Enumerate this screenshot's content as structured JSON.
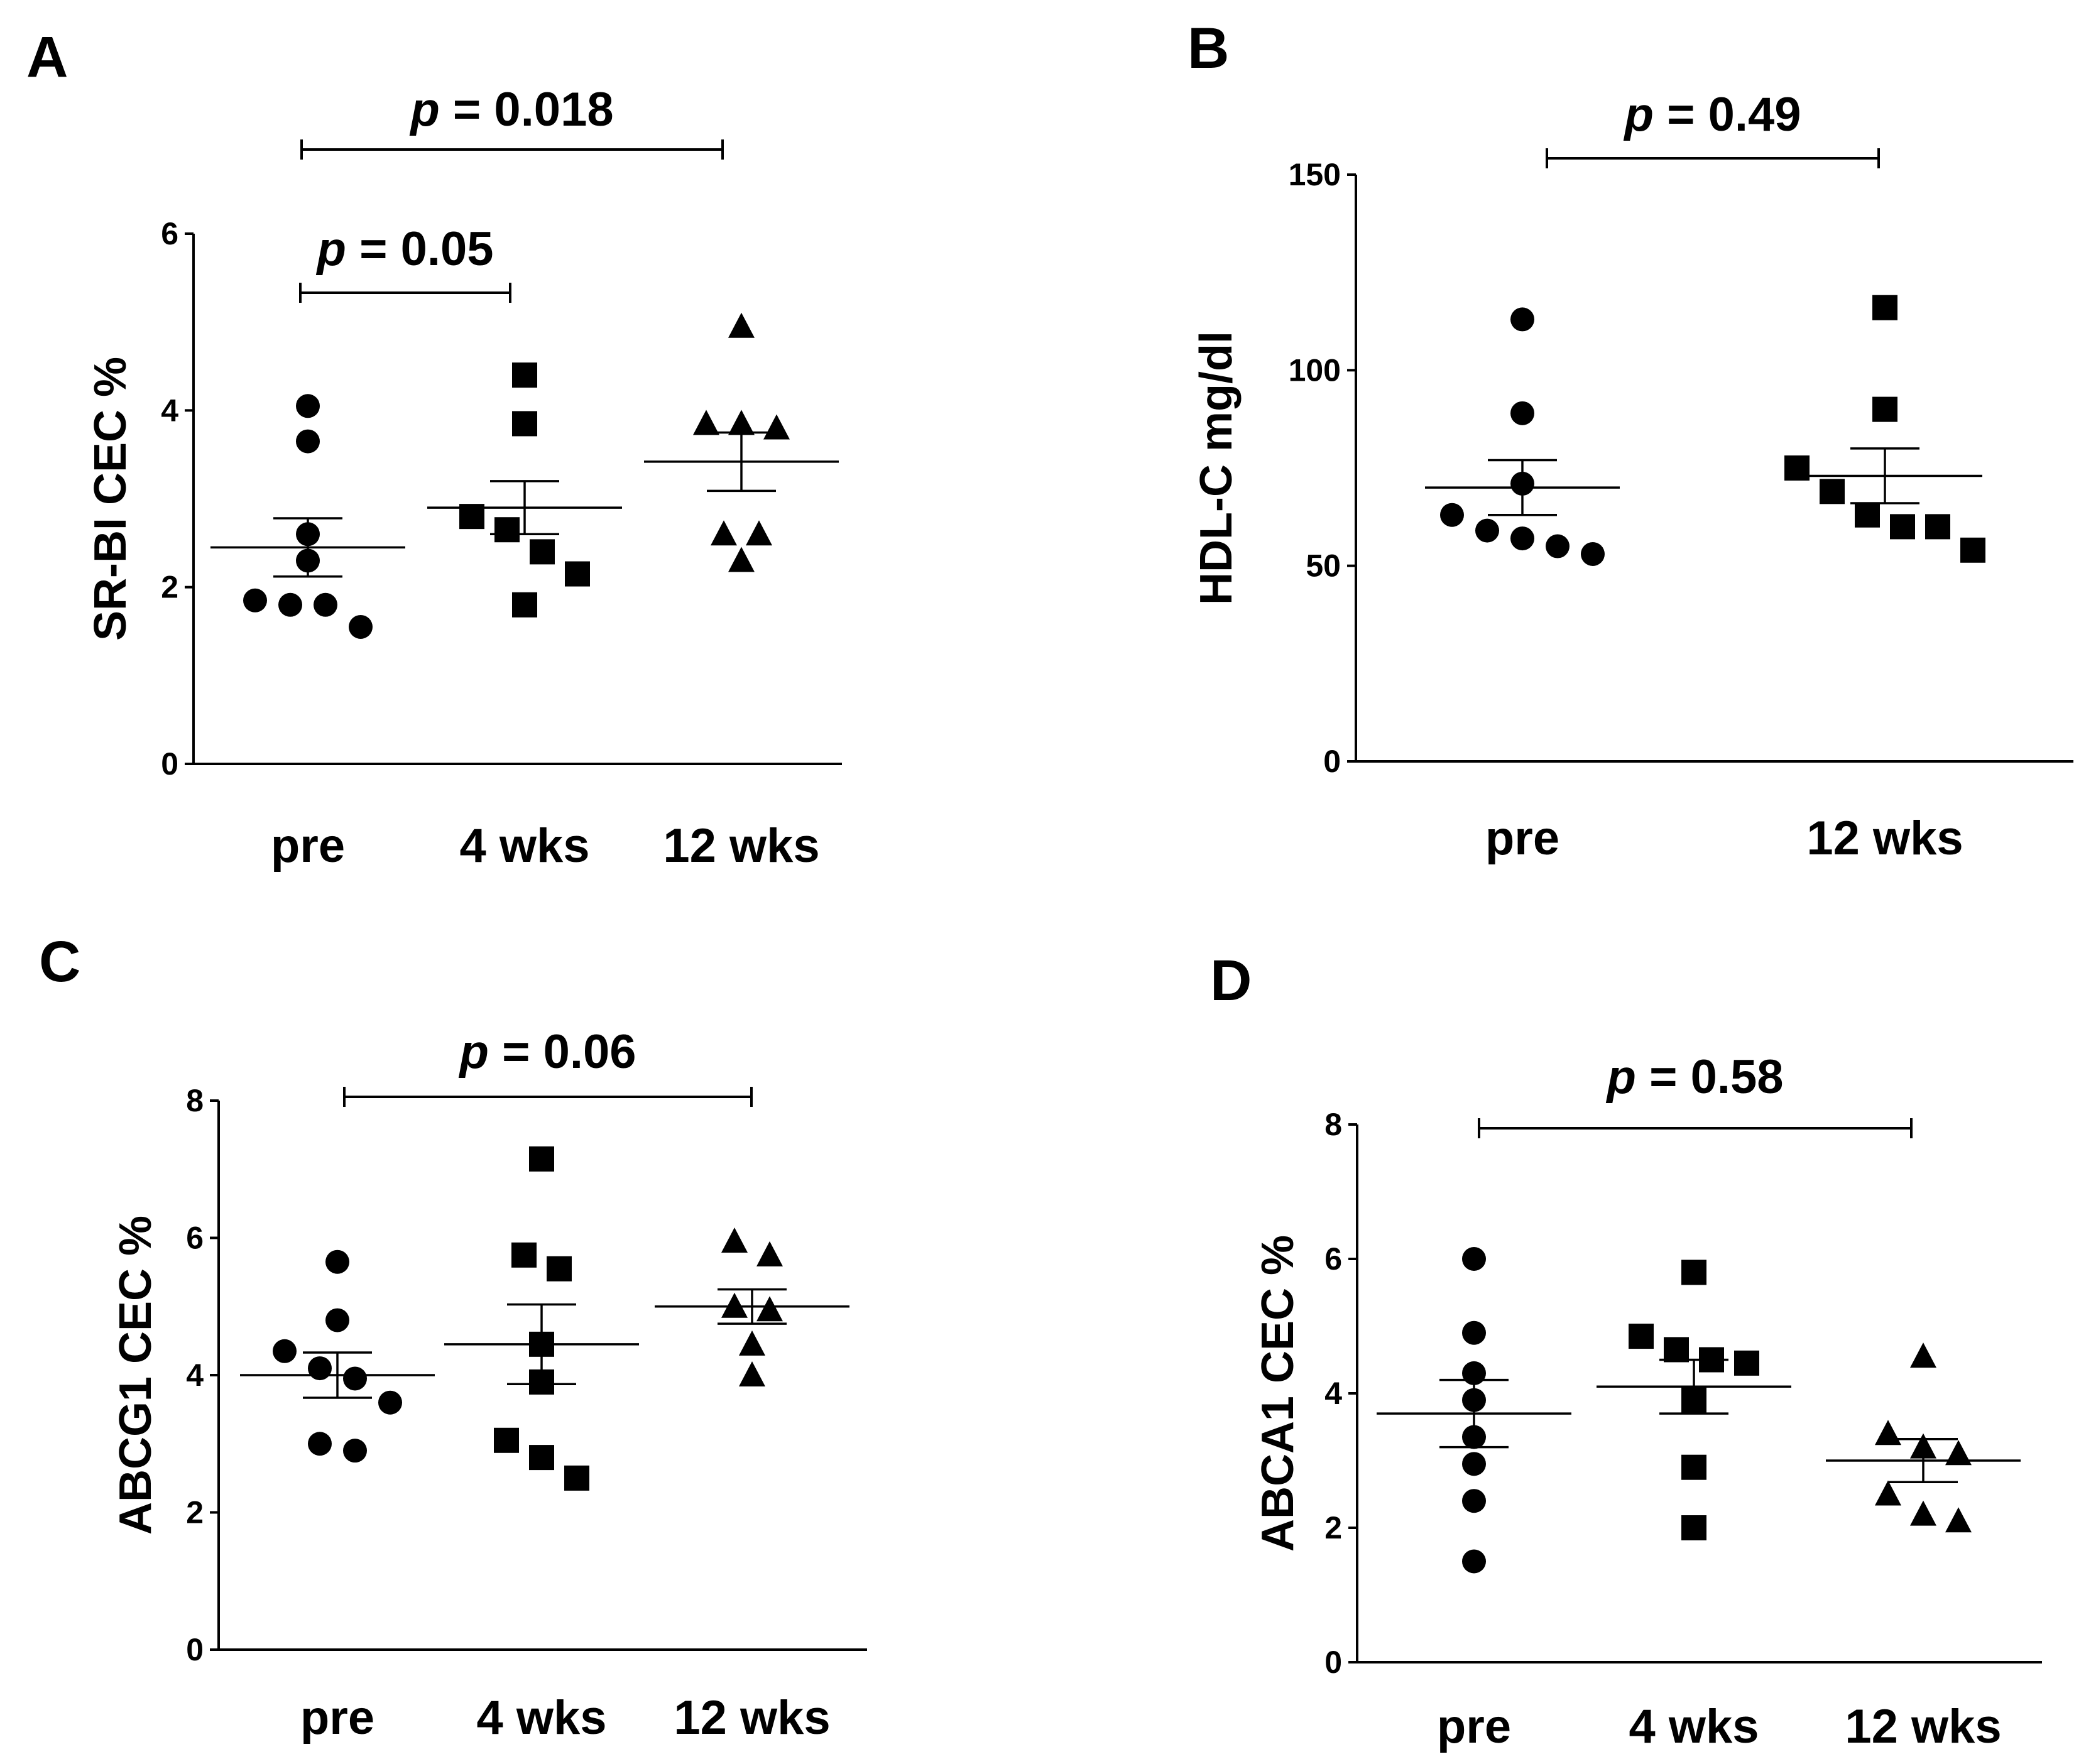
{
  "chart_data": [
    {
      "panel": "A",
      "type": "scatter",
      "ylabel": "SR-BI CEC %",
      "ylim": [
        0,
        6
      ],
      "yticks": [
        0,
        2,
        4,
        6
      ],
      "categories": [
        "pre",
        "4 wks",
        "12 wks"
      ],
      "markers": [
        "circle",
        "square",
        "triangle"
      ],
      "series": [
        {
          "category": "pre",
          "values": [
            4.05,
            3.65,
            2.6,
            2.3,
            1.85,
            1.8,
            1.8,
            1.55
          ],
          "mean": 2.45,
          "sem": 0.33
        },
        {
          "category": "4 wks",
          "values": [
            4.4,
            3.85,
            2.8,
            2.65,
            2.4,
            2.15,
            1.8
          ],
          "mean": 2.9,
          "sem": 0.3
        },
        {
          "category": "12 wks",
          "values": [
            4.95,
            3.85,
            3.8,
            3.85,
            2.6,
            2.6,
            2.3
          ],
          "mean": 3.42,
          "sem": 0.33
        }
      ],
      "annotations": [
        {
          "text_p": "p",
          "text_rest": " = 0.018",
          "from": "pre",
          "to": "12 wks"
        },
        {
          "text_p": "p",
          "text_rest": " = 0.05",
          "from": "pre",
          "to": "4 wks"
        }
      ]
    },
    {
      "panel": "B",
      "type": "scatter",
      "ylabel": "HDL-C mg/dl",
      "ylim": [
        0,
        150
      ],
      "yticks": [
        0,
        50,
        100,
        150
      ],
      "categories": [
        "pre",
        "12 wks"
      ],
      "markers": [
        "circle",
        "square"
      ],
      "series": [
        {
          "category": "pre",
          "values": [
            113,
            89,
            71,
            63,
            59,
            57,
            55,
            53
          ],
          "mean": 70,
          "sem": 7
        },
        {
          "category": "12 wks",
          "values": [
            116,
            90,
            75,
            69,
            63,
            60,
            60,
            54
          ],
          "mean": 73,
          "sem": 7
        }
      ],
      "annotations": [
        {
          "text_p": "p",
          "text_rest": " = 0.49",
          "from": "pre",
          "to": "12 wks"
        }
      ]
    },
    {
      "panel": "C",
      "type": "scatter",
      "ylabel": "ABCG1 CEC %",
      "ylim": [
        0,
        8
      ],
      "yticks": [
        0,
        2,
        4,
        6,
        8
      ],
      "categories": [
        "pre",
        "4 wks",
        "12 wks"
      ],
      "markers": [
        "circle",
        "square",
        "triangle"
      ],
      "series": [
        {
          "category": "pre",
          "values": [
            5.65,
            4.8,
            4.35,
            4.1,
            3.95,
            3.6,
            3.0,
            2.9
          ],
          "mean": 4.0,
          "sem": 0.33
        },
        {
          "category": "4 wks",
          "values": [
            7.15,
            5.75,
            5.55,
            4.45,
            3.9,
            3.05,
            2.8,
            2.5
          ],
          "mean": 4.45,
          "sem": 0.58
        },
        {
          "category": "12 wks",
          "values": [
            5.95,
            5.75,
            5.0,
            4.95,
            4.45,
            4.0
          ],
          "mean": 5.0,
          "sem": 0.25
        }
      ],
      "annotations": [
        {
          "text_p": "p",
          "text_rest": " = 0.06",
          "from": "pre",
          "to": "12 wks"
        }
      ]
    },
    {
      "panel": "D",
      "type": "scatter",
      "ylabel": "ABCA1 CEC %",
      "ylim": [
        0,
        8
      ],
      "yticks": [
        0,
        2,
        4,
        6,
        8
      ],
      "categories": [
        "pre",
        "4 wks",
        "12 wks"
      ],
      "markers": [
        "circle",
        "square",
        "triangle"
      ],
      "series": [
        {
          "category": "pre",
          "values": [
            6.0,
            4.9,
            4.3,
            3.9,
            3.35,
            2.95,
            2.4,
            1.5
          ],
          "mean": 3.7,
          "sem": 0.5
        },
        {
          "category": "4 wks",
          "values": [
            5.8,
            4.85,
            4.65,
            4.5,
            4.45,
            3.9,
            2.9,
            2.0
          ],
          "mean": 4.1,
          "sem": 0.4
        },
        {
          "category": "12 wks",
          "values": [
            4.55,
            3.4,
            3.2,
            3.1,
            2.5,
            2.2,
            2.1
          ],
          "mean": 3.0,
          "sem": 0.32
        }
      ],
      "annotations": [
        {
          "text_p": "p",
          "text_rest": " = 0.58",
          "from": "pre",
          "to": "12 wks"
        }
      ]
    }
  ]
}
